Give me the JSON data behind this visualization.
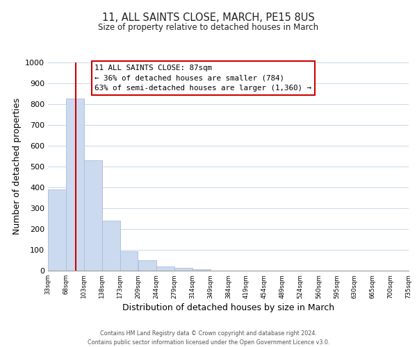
{
  "title": "11, ALL SAINTS CLOSE, MARCH, PE15 8US",
  "subtitle": "Size of property relative to detached houses in March",
  "xlabel": "Distribution of detached houses by size in March",
  "ylabel": "Number of detached properties",
  "bar_edges": [
    33,
    68,
    103,
    138,
    173,
    209,
    244,
    279,
    314,
    349,
    384,
    419,
    454,
    489,
    524,
    560,
    595,
    630,
    665,
    700,
    735
  ],
  "bar_heights": [
    390,
    828,
    530,
    240,
    95,
    50,
    20,
    13,
    7,
    0,
    0,
    0,
    0,
    0,
    0,
    0,
    0,
    0,
    0,
    0
  ],
  "bar_color": "#ccdaf0",
  "bar_edge_color": "#aabdd8",
  "property_line_x": 87,
  "property_line_color": "#cc0000",
  "ylim": [
    0,
    1000
  ],
  "xlim": [
    33,
    735
  ],
  "annotation_title": "11 ALL SAINTS CLOSE: 87sqm",
  "annotation_line1": "← 36% of detached houses are smaller (784)",
  "annotation_line2": "63% of semi-detached houses are larger (1,360) →",
  "annotation_box_color": "#ffffff",
  "annotation_box_edge": "#cc0000",
  "footer_line1": "Contains HM Land Registry data © Crown copyright and database right 2024.",
  "footer_line2": "Contains public sector information licensed under the Open Government Licence v3.0.",
  "tick_labels": [
    "33sqm",
    "68sqm",
    "103sqm",
    "138sqm",
    "173sqm",
    "209sqm",
    "244sqm",
    "279sqm",
    "314sqm",
    "349sqm",
    "384sqm",
    "419sqm",
    "454sqm",
    "489sqm",
    "524sqm",
    "560sqm",
    "595sqm",
    "630sqm",
    "665sqm",
    "700sqm",
    "735sqm"
  ],
  "yticks": [
    0,
    100,
    200,
    300,
    400,
    500,
    600,
    700,
    800,
    900,
    1000
  ],
  "background_color": "#ffffff",
  "grid_color": "#c8d8ea"
}
